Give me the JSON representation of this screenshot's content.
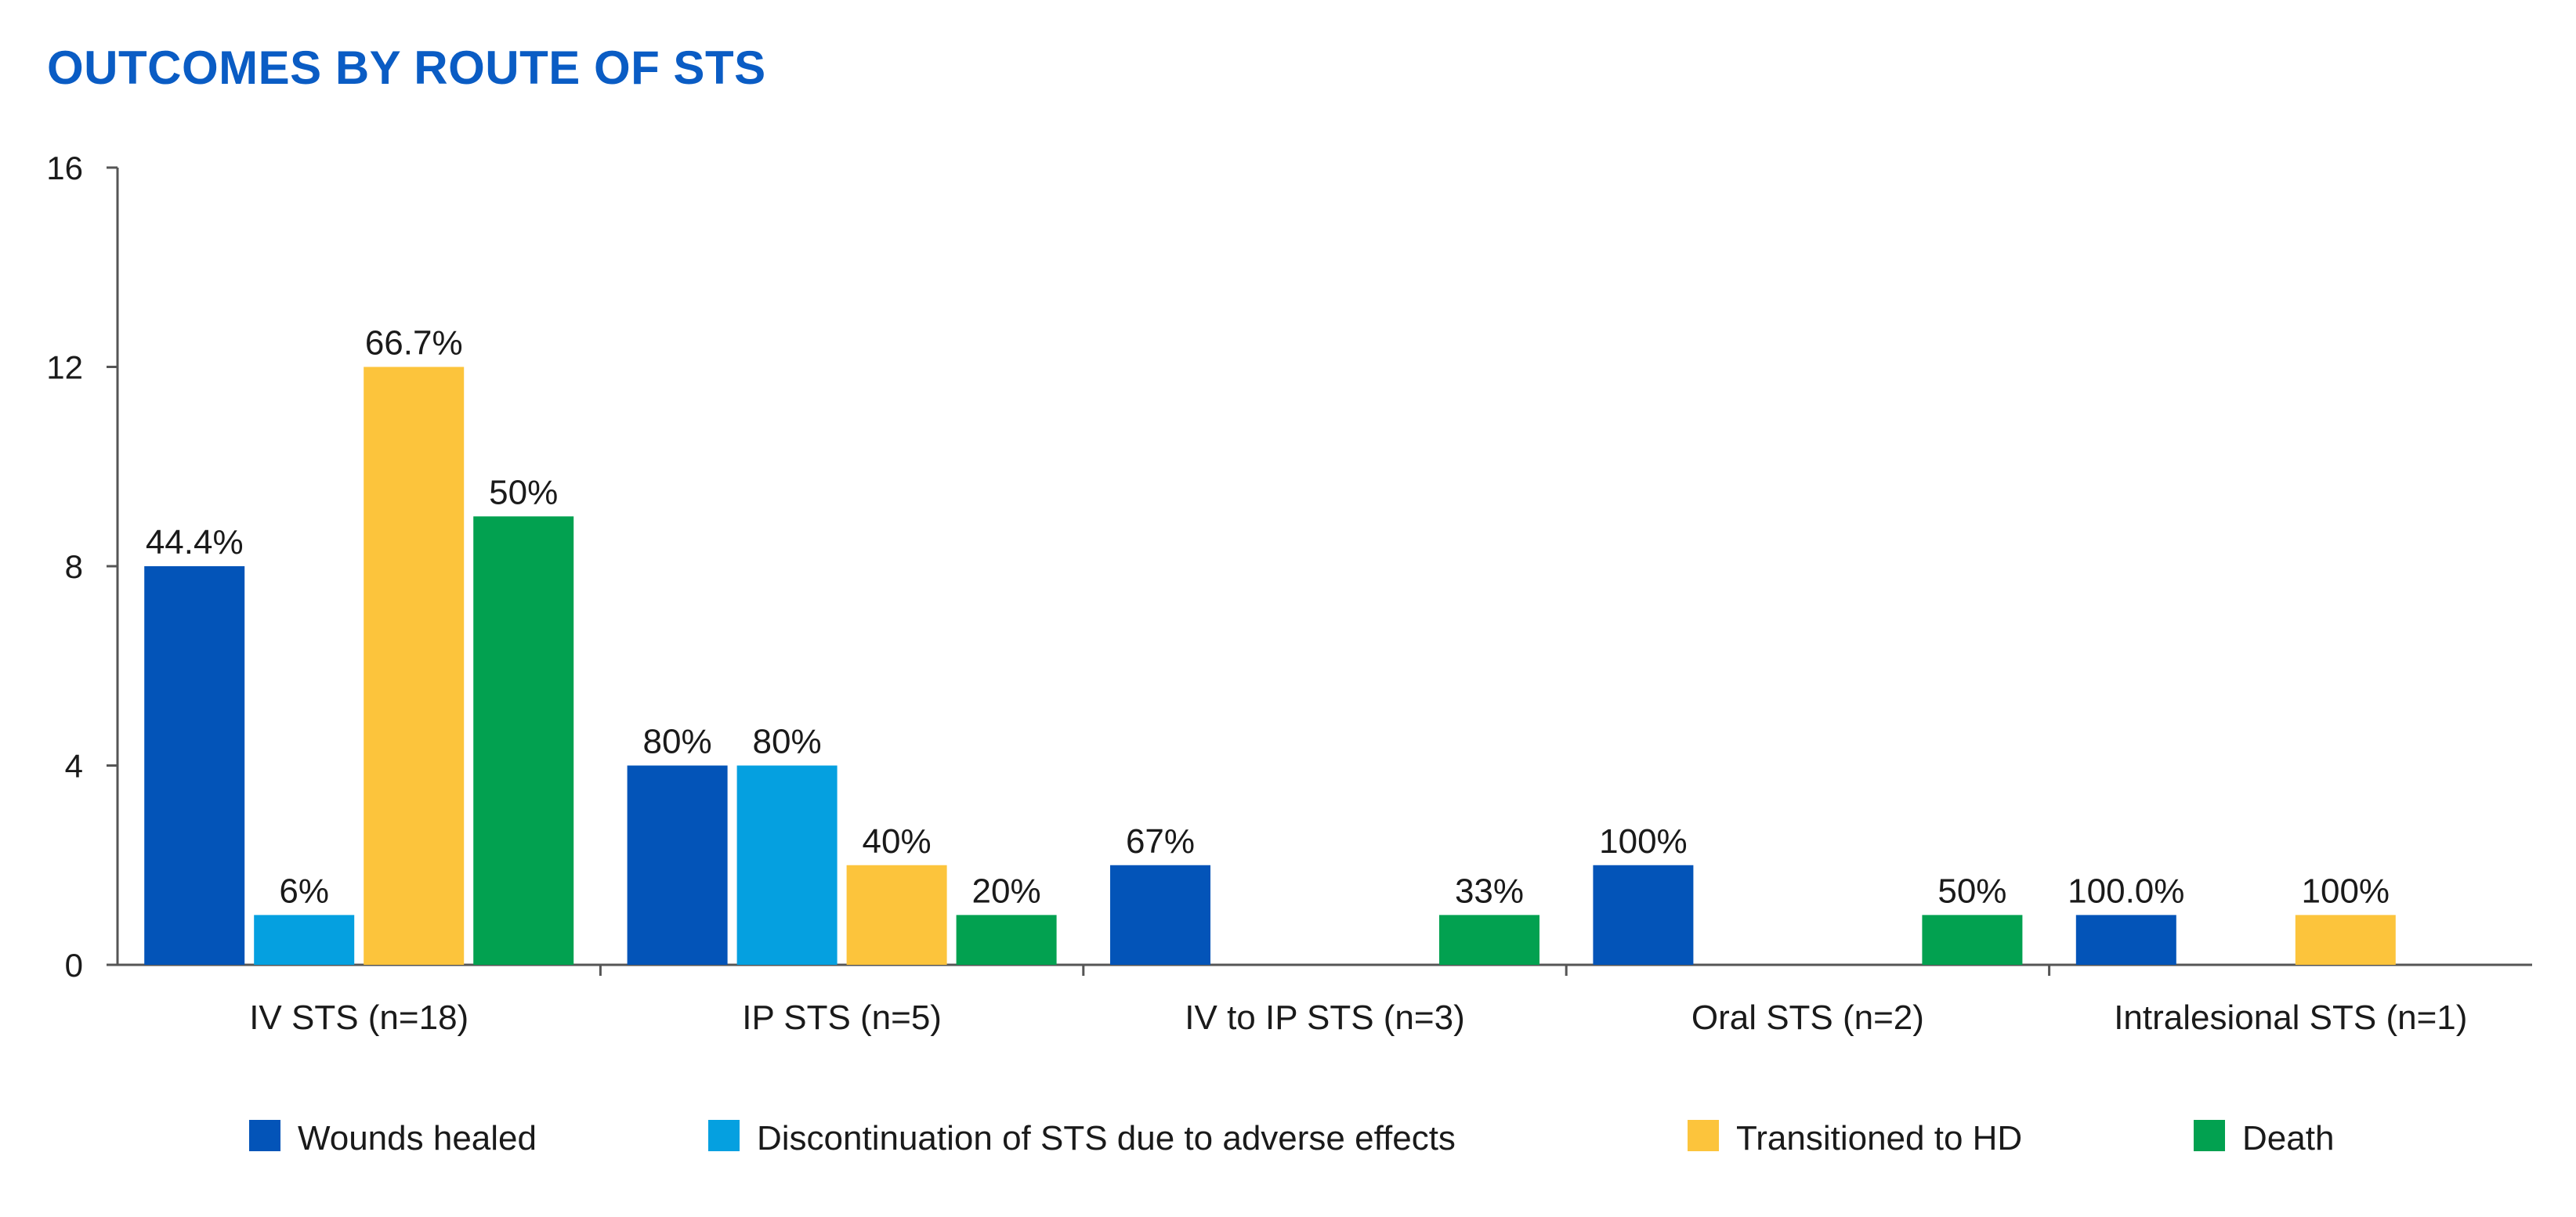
{
  "chart_data": {
    "type": "bar",
    "title": "OUTCOMES BY ROUTE OF STS",
    "title_color": "#0a5cc4",
    "categories": [
      "IV STS (n=18)",
      "IP STS (n=5)",
      "IV to IP STS (n=3)",
      "Oral STS (n=2)",
      "Intralesional STS (n=1)"
    ],
    "series": [
      {
        "name": "Wounds healed",
        "color": "#0354b8",
        "values": [
          8,
          4,
          2,
          2,
          1
        ],
        "labels": [
          "44.4%",
          "80%",
          "67%",
          "100%",
          "100.0%"
        ]
      },
      {
        "name": "Discontinuation of STS due to adverse effects",
        "color": "#05a0e0",
        "values": [
          1,
          4,
          null,
          null,
          null
        ],
        "labels": [
          "6%",
          "80%",
          null,
          null,
          null
        ]
      },
      {
        "name": "Transitioned to HD",
        "color": "#fcc43c",
        "values": [
          12,
          2,
          null,
          null,
          1
        ],
        "labels": [
          "66.7%",
          "40%",
          null,
          null,
          "100%"
        ]
      },
      {
        "name": "Death",
        "color": "#02a150",
        "values": [
          9,
          1,
          1,
          1,
          null
        ],
        "labels": [
          "50%",
          "20%",
          "33%",
          "50%",
          null
        ]
      }
    ],
    "xlabel": "",
    "ylabel": "",
    "ylim": [
      0,
      16
    ],
    "yticks": [
      "0",
      "4",
      "8",
      "12",
      "16"
    ],
    "grid": false,
    "legend_position": "bottom"
  }
}
